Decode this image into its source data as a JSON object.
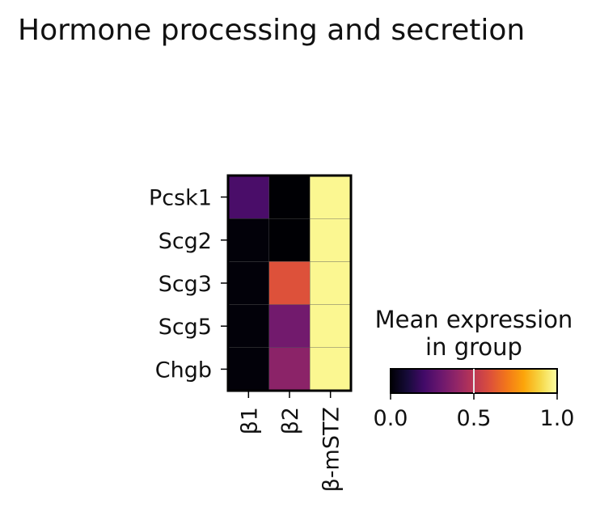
{
  "chart_data": {
    "type": "heatmap",
    "title": "Hormone processing and secretion",
    "x_categories": [
      "β1",
      "β2",
      "β-mSTZ"
    ],
    "y_categories": [
      "Pcsk1",
      "Scg2",
      "Scg3",
      "Scg5",
      "Chgb"
    ],
    "values": [
      [
        0.22,
        0.0,
        0.98
      ],
      [
        0.01,
        0.0,
        0.98
      ],
      [
        0.01,
        0.6,
        0.98
      ],
      [
        0.01,
        0.32,
        0.98
      ],
      [
        0.01,
        0.38,
        0.98
      ]
    ],
    "colormap": "inferno",
    "colorbar": {
      "title_line1": "Mean expression",
      "title_line2": "in group",
      "min": 0.0,
      "max": 1.0,
      "ticks": [
        0.0,
        0.5,
        1.0
      ],
      "tick_labels": [
        "0.0",
        "0.5",
        "1.0"
      ],
      "marker_value": 0.5
    },
    "grid": false
  }
}
